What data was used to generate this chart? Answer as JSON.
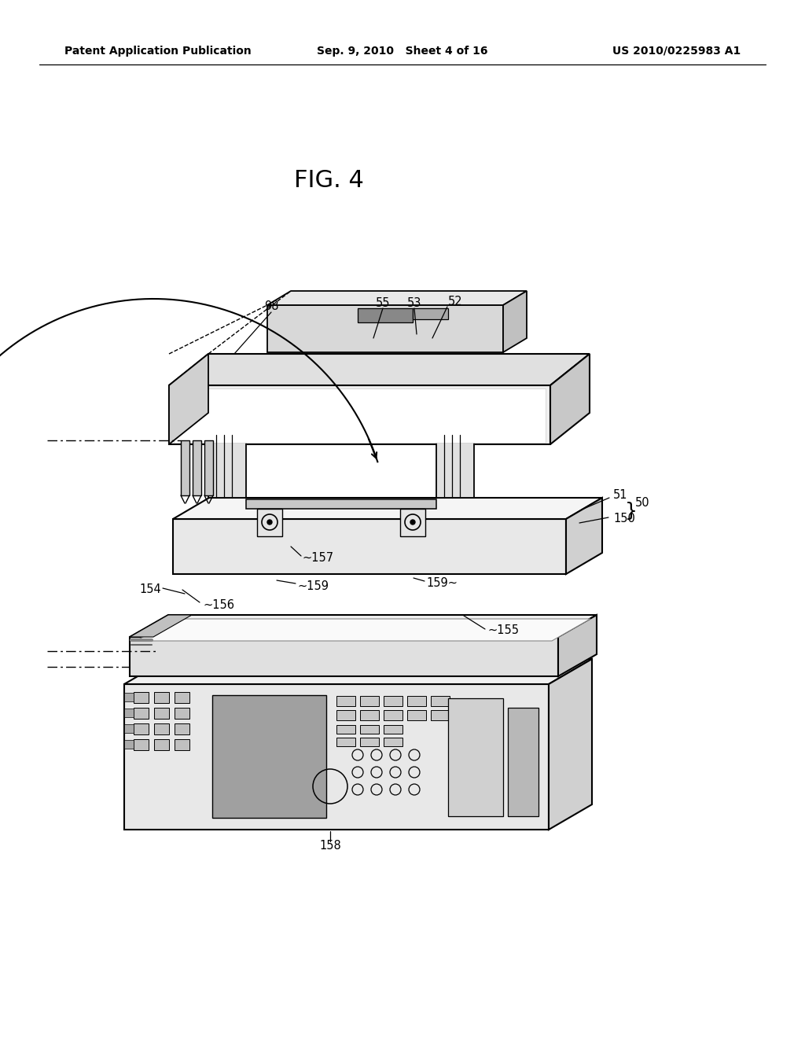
{
  "bg_color": "#ffffff",
  "header_left": "Patent Application Publication",
  "header_center": "Sep. 9, 2010   Sheet 4 of 16",
  "header_right": "US 2010/0225983 A1",
  "fig_label": "FIG. 4",
  "lc": "#000000",
  "fc_white": "#ffffff",
  "fc_light": "#eeeeee",
  "fc_mid": "#d8d8d8",
  "fc_dark": "#b0b0b0",
  "fc_darker": "#909090"
}
